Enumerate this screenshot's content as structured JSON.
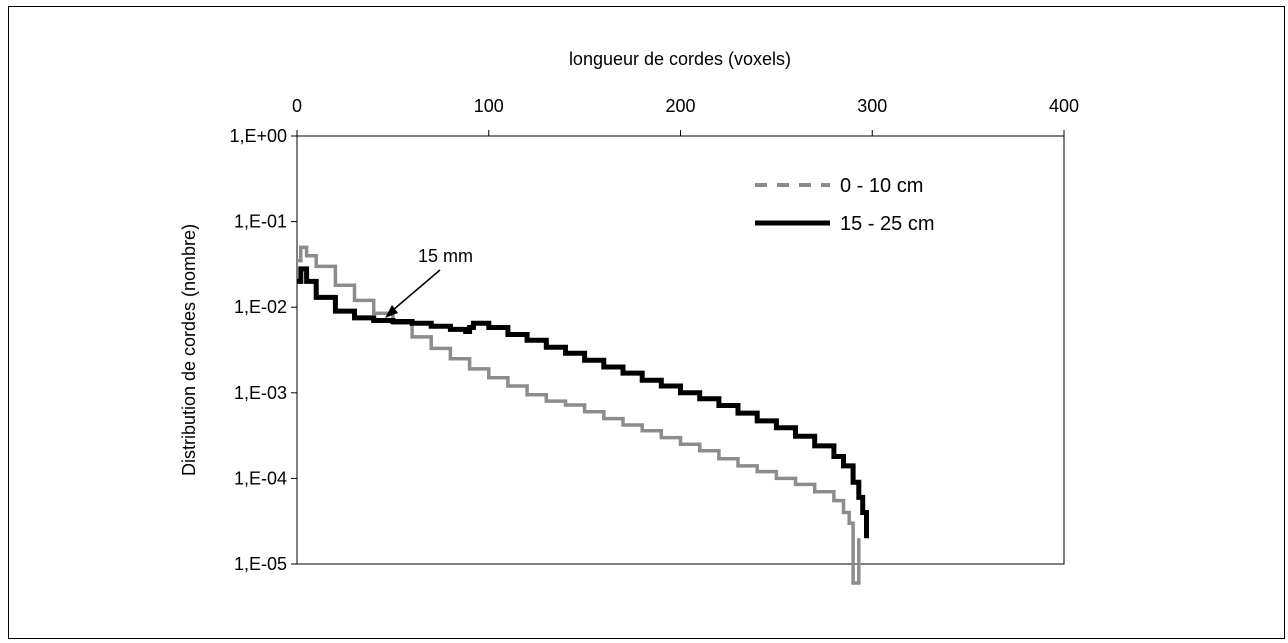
{
  "chart_data": {
    "type": "line",
    "xlabel": "longueur de cordes (voxels)",
    "ylabel": "Distribution de cordes (nombre)",
    "x_axis_position": "top",
    "y_scale": "log",
    "xlim": [
      0,
      400
    ],
    "ylim": [
      1e-05,
      1
    ],
    "x_ticks": [
      0,
      100,
      200,
      300,
      400
    ],
    "x_tick_labels": [
      "0",
      "100",
      "200",
      "300",
      "400"
    ],
    "y_ticks": [
      1,
      0.1,
      0.01,
      0.001,
      0.0001,
      1e-05
    ],
    "y_tick_labels": [
      "1,E+00",
      "1,E-01",
      "1,E-02",
      "1,E-03",
      "1,E-04",
      "1,E-05"
    ],
    "grid": false,
    "legend_position": "top-right",
    "series": [
      {
        "name": "0 - 10 cm",
        "color": "#8c8c8c",
        "style": "dashed",
        "x": [
          0,
          2,
          5,
          10,
          20,
          30,
          40,
          50,
          60,
          70,
          80,
          90,
          100,
          110,
          120,
          130,
          140,
          150,
          160,
          170,
          180,
          190,
          200,
          210,
          220,
          230,
          240,
          250,
          260,
          270,
          280,
          285,
          288,
          290,
          293
        ],
        "y": [
          0.035,
          0.05,
          0.04,
          0.03,
          0.018,
          0.012,
          0.0085,
          0.0065,
          0.0045,
          0.0033,
          0.0025,
          0.0019,
          0.0015,
          0.0012,
          0.00095,
          0.0008,
          0.00072,
          0.0006,
          0.0005,
          0.00042,
          0.00036,
          0.0003,
          0.00025,
          0.00021,
          0.00017,
          0.00014,
          0.00012,
          0.0001,
          8.5e-05,
          7e-05,
          5.5e-05,
          4e-05,
          3e-05,
          6e-06,
          2e-05
        ]
      },
      {
        "name": "15 - 25 cm",
        "color": "#000000",
        "style": "solid",
        "x": [
          0,
          2,
          5,
          10,
          20,
          30,
          40,
          50,
          60,
          70,
          80,
          88,
          90,
          92,
          100,
          110,
          120,
          130,
          140,
          150,
          160,
          170,
          180,
          190,
          200,
          210,
          220,
          230,
          240,
          250,
          260,
          270,
          280,
          285,
          290,
          293,
          295,
          297
        ],
        "y": [
          0.02,
          0.028,
          0.02,
          0.013,
          0.009,
          0.0075,
          0.007,
          0.0068,
          0.0065,
          0.006,
          0.0055,
          0.0052,
          0.0058,
          0.0065,
          0.0058,
          0.0048,
          0.0041,
          0.0034,
          0.0029,
          0.0024,
          0.002,
          0.0017,
          0.0014,
          0.0012,
          0.001,
          0.00085,
          0.00071,
          0.00058,
          0.00047,
          0.00039,
          0.00031,
          0.00024,
          0.00018,
          0.00014,
          9e-05,
          6e-05,
          4e-05,
          2e-05
        ]
      }
    ],
    "annotations": [
      {
        "text": "15 mm",
        "x": 48,
        "y": 0.0067
      }
    ]
  }
}
